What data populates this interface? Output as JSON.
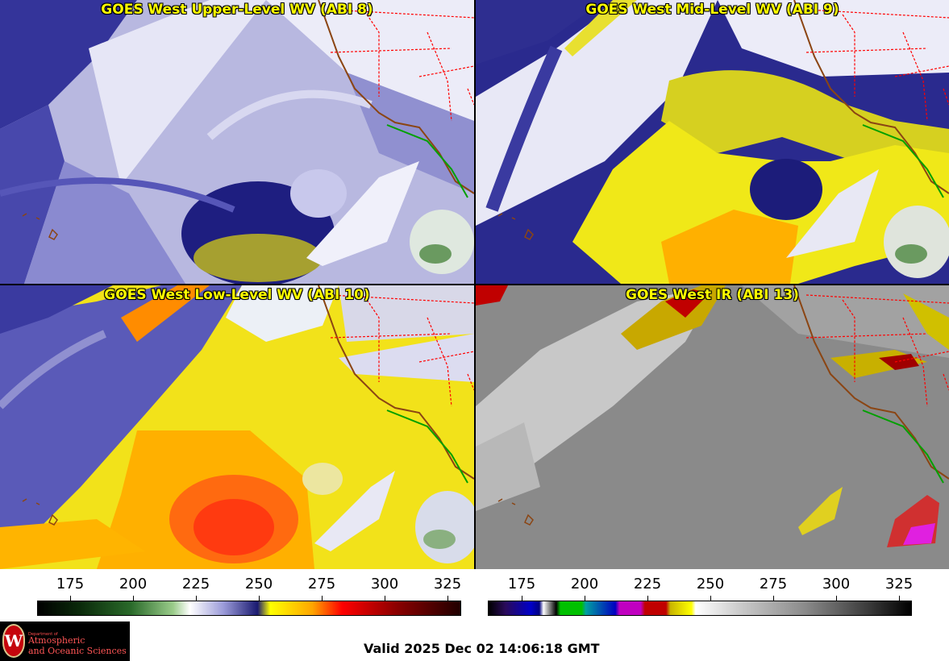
{
  "panels": {
    "upper": {
      "title": "GOES West Upper-Level WV (ABI 8)"
    },
    "mid": {
      "title": "GOES West Mid-Level WV (ABI 9)"
    },
    "low": {
      "title": "GOES West Low-Level WV (ABI 10)"
    },
    "ir": {
      "title": "GOES West IR (ABI 13)"
    }
  },
  "colorbars": {
    "wv": {
      "ticks": [
        "175",
        "200",
        "225",
        "250",
        "275",
        "300",
        "325"
      ]
    },
    "ir": {
      "ticks": [
        "175",
        "200",
        "225",
        "250",
        "275",
        "300",
        "325"
      ]
    }
  },
  "logo": {
    "line1": "Department of",
    "line2": "Atmospheric",
    "line3": "and Oceanic Sciences"
  },
  "valid_time": "Valid 2025 Dec 02 14:06:18 GMT",
  "colors": {
    "title_text": "#ffff00",
    "coast": "#8b4513",
    "state_borders": "#ff0000",
    "mexico_coast": "#00a000"
  }
}
